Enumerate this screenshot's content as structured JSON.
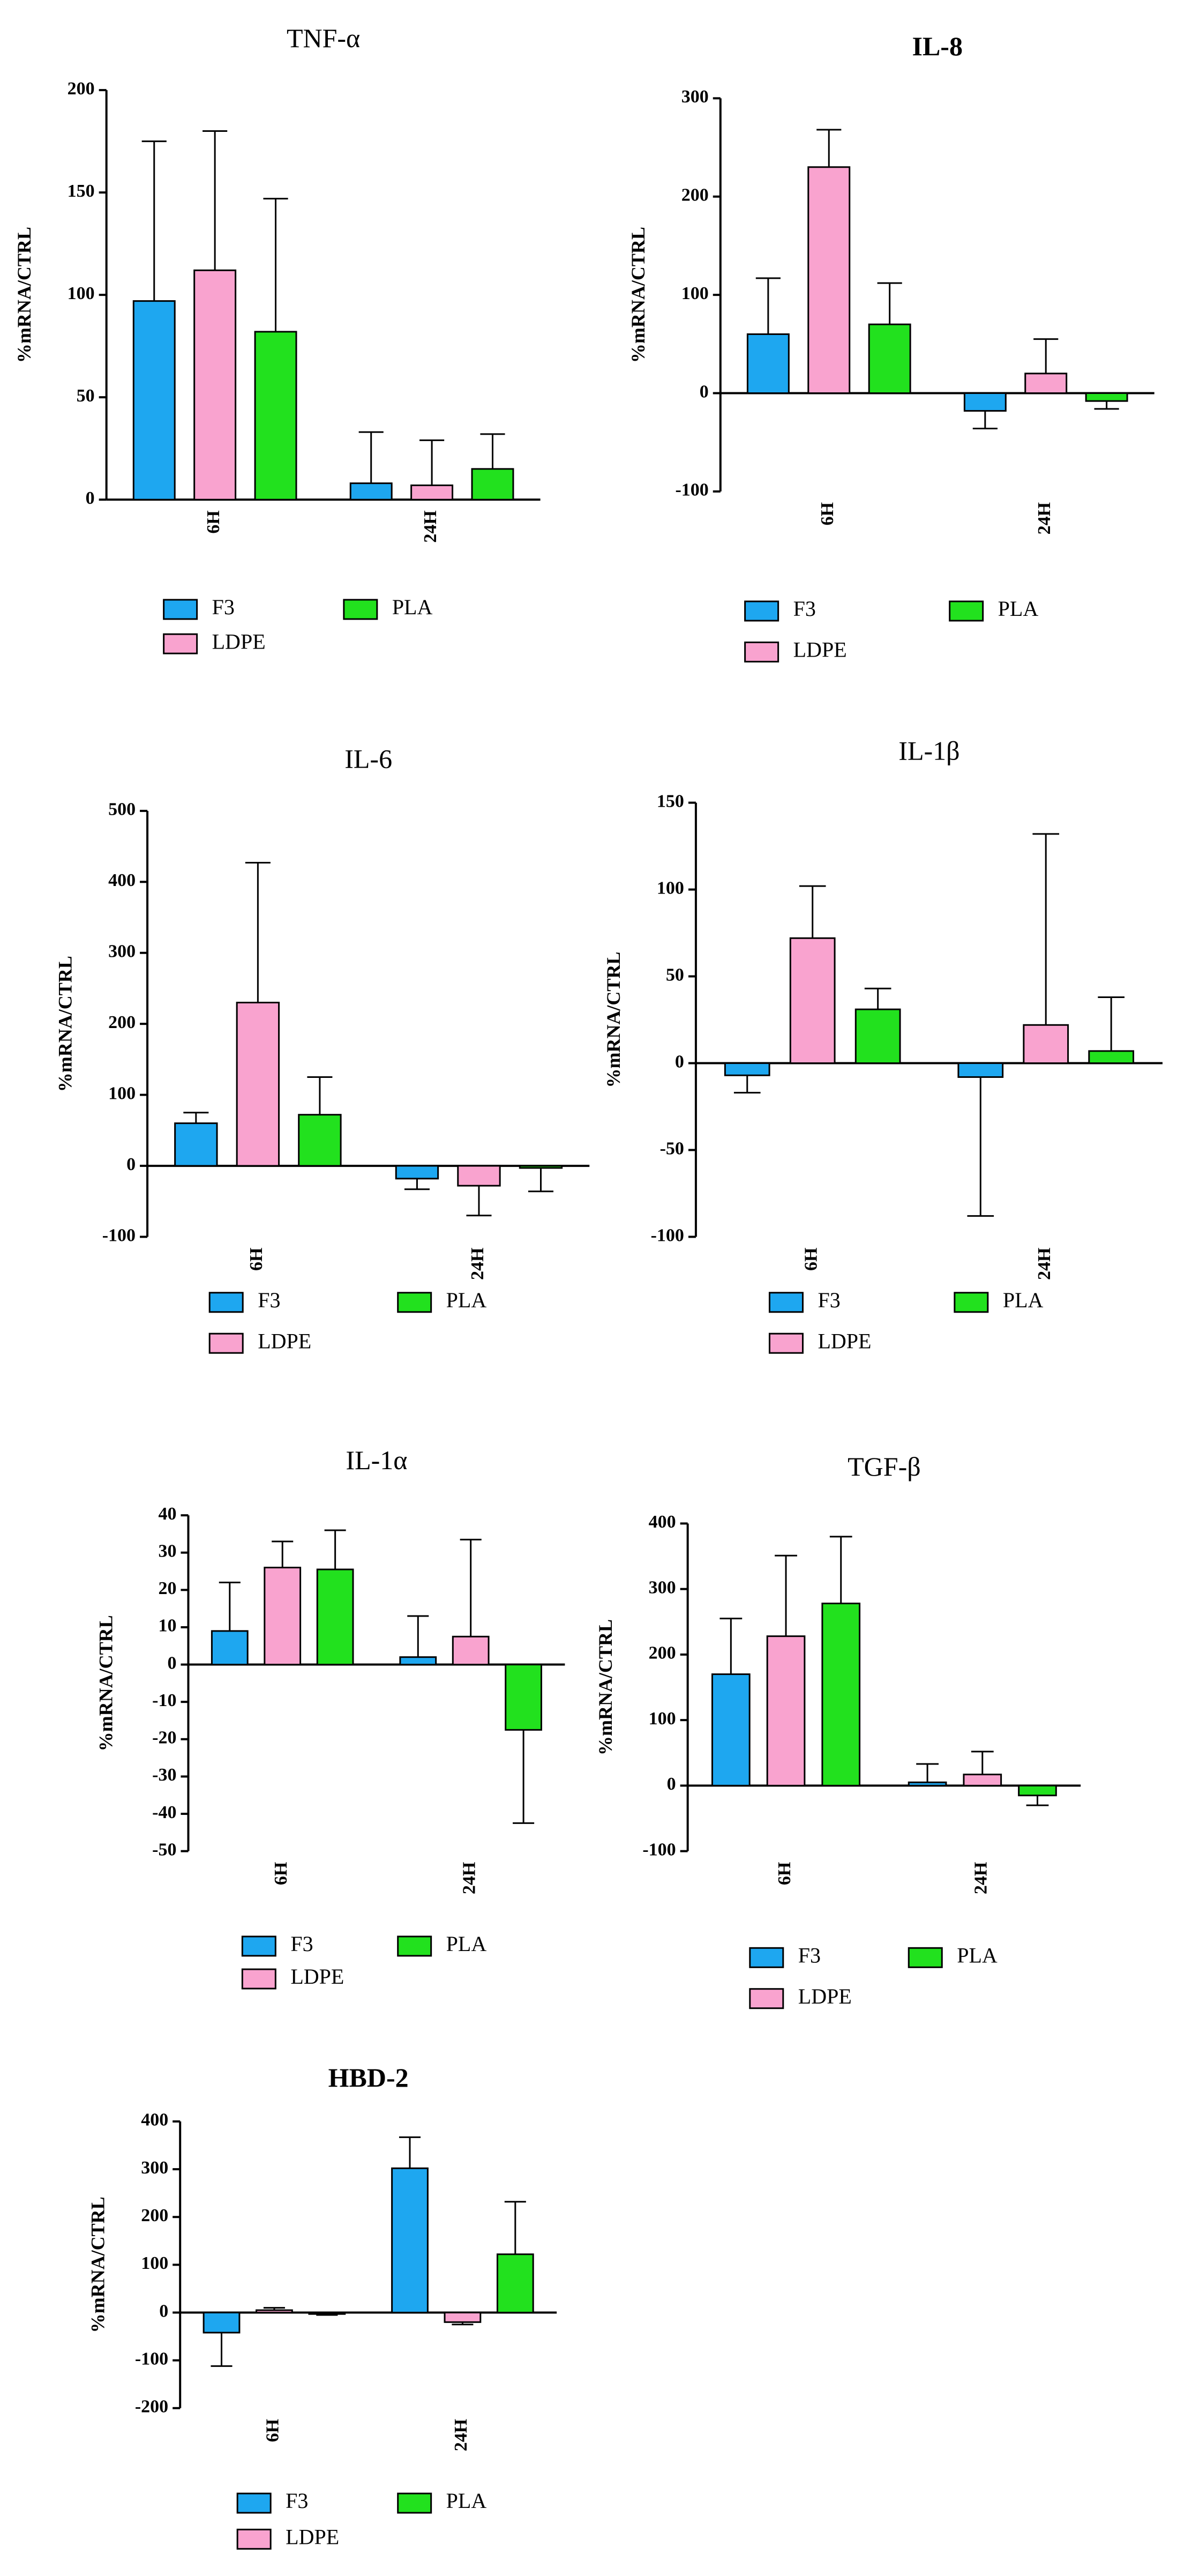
{
  "chart_data": [
    {
      "type": "bar",
      "title": "TNF-α",
      "y_label": "%mRNA/CTRL",
      "categories": [
        "6H",
        "24H"
      ],
      "series": [
        {
          "name": "F3",
          "color": "#1ea7f0",
          "values": [
            97,
            8
          ],
          "errors": [
            78,
            25
          ]
        },
        {
          "name": "LDPE",
          "color": "#f9a3cf",
          "values": [
            112,
            7
          ],
          "errors": [
            68,
            22
          ]
        },
        {
          "name": "PLA",
          "color": "#22e11e",
          "values": [
            82,
            15
          ],
          "errors": [
            65,
            17
          ]
        }
      ],
      "ylim": [
        0,
        200
      ],
      "yticks": [
        0,
        50,
        100,
        150,
        200
      ]
    },
    {
      "type": "bar",
      "title": "IL-8",
      "y_label": "%mRNA/CTRL",
      "categories": [
        "6H",
        "24H"
      ],
      "series": [
        {
          "name": "F3",
          "color": "#1ea7f0",
          "values": [
            60,
            -18
          ],
          "errors": [
            57,
            18
          ]
        },
        {
          "name": "LDPE",
          "color": "#f9a3cf",
          "values": [
            230,
            20
          ],
          "errors": [
            38,
            35
          ]
        },
        {
          "name": "PLA",
          "color": "#22e11e",
          "values": [
            70,
            -8
          ],
          "errors": [
            42,
            8
          ]
        }
      ],
      "ylim": [
        -100,
        300
      ],
      "yticks": [
        -100,
        0,
        100,
        200,
        300
      ]
    },
    {
      "type": "bar",
      "title": "IL-6",
      "y_label": "%mRNA/CTRL",
      "categories": [
        "6H",
        "24H"
      ],
      "series": [
        {
          "name": "F3",
          "color": "#1ea7f0",
          "values": [
            60,
            -18
          ],
          "errors": [
            15,
            15
          ]
        },
        {
          "name": "LDPE",
          "color": "#f9a3cf",
          "values": [
            230,
            -28
          ],
          "errors": [
            197,
            42
          ]
        },
        {
          "name": "PLA",
          "color": "#22e11e",
          "values": [
            72,
            -3
          ],
          "errors": [
            53,
            33
          ]
        }
      ],
      "ylim": [
        -100,
        500
      ],
      "yticks": [
        -100,
        0,
        100,
        200,
        300,
        400,
        500
      ]
    },
    {
      "type": "bar",
      "title": "IL-1β",
      "y_label": "%mRNA/CTRL",
      "categories": [
        "6H",
        "24H"
      ],
      "series": [
        {
          "name": "F3",
          "color": "#1ea7f0",
          "values": [
            -7,
            -8
          ],
          "errors": [
            10,
            80
          ]
        },
        {
          "name": "LDPE",
          "color": "#f9a3cf",
          "values": [
            72,
            22
          ],
          "errors": [
            30,
            110
          ]
        },
        {
          "name": "PLA",
          "color": "#22e11e",
          "values": [
            31,
            7
          ],
          "errors": [
            12,
            31
          ]
        }
      ],
      "ylim": [
        -100,
        150
      ],
      "yticks": [
        -100,
        -50,
        0,
        50,
        100,
        150
      ]
    },
    {
      "type": "bar",
      "title": "IL-1α",
      "y_label": "%mRNA/CTRL",
      "categories": [
        "6H",
        "24H"
      ],
      "series": [
        {
          "name": "F3",
          "color": "#1ea7f0",
          "values": [
            9,
            2
          ],
          "errors": [
            13,
            11
          ]
        },
        {
          "name": "LDPE",
          "color": "#f9a3cf",
          "values": [
            26,
            7.5
          ],
          "errors": [
            7,
            26
          ]
        },
        {
          "name": "PLA",
          "color": "#22e11e",
          "values": [
            25.5,
            -17.5
          ],
          "errors": [
            10.5,
            25
          ]
        }
      ],
      "ylim": [
        -50,
        40
      ],
      "yticks": [
        -50,
        -40,
        -30,
        -20,
        -10,
        0,
        10,
        20,
        30,
        40
      ]
    },
    {
      "type": "bar",
      "title": "TGF-β",
      "y_label": "%mRNA/CTRL",
      "categories": [
        "6H",
        "24H"
      ],
      "series": [
        {
          "name": "F3",
          "color": "#1ea7f0",
          "values": [
            170,
            5
          ],
          "errors": [
            85,
            28
          ]
        },
        {
          "name": "LDPE",
          "color": "#f9a3cf",
          "values": [
            228,
            17
          ],
          "errors": [
            123,
            35
          ]
        },
        {
          "name": "PLA",
          "color": "#22e11e",
          "values": [
            278,
            -15
          ],
          "errors": [
            102,
            15
          ]
        }
      ],
      "ylim": [
        -100,
        400
      ],
      "yticks": [
        -100,
        0,
        100,
        200,
        300,
        400
      ]
    },
    {
      "type": "bar",
      "title": "HBD-2",
      "y_label": "%mRNA/CTRL",
      "categories": [
        "6H",
        "24H"
      ],
      "series": [
        {
          "name": "F3",
          "color": "#1ea7f0",
          "values": [
            -42,
            302
          ],
          "errors": [
            70,
            65
          ]
        },
        {
          "name": "LDPE",
          "color": "#f9a3cf",
          "values": [
            5,
            -20
          ],
          "errors": [
            5,
            5
          ]
        },
        {
          "name": "PLA",
          "color": "#22e11e",
          "values": [
            -3,
            122
          ],
          "errors": [
            2,
            110
          ]
        }
      ],
      "ylim": [
        -200,
        400
      ],
      "yticks": [
        -200,
        -100,
        0,
        100,
        200,
        300,
        400
      ]
    }
  ]
}
